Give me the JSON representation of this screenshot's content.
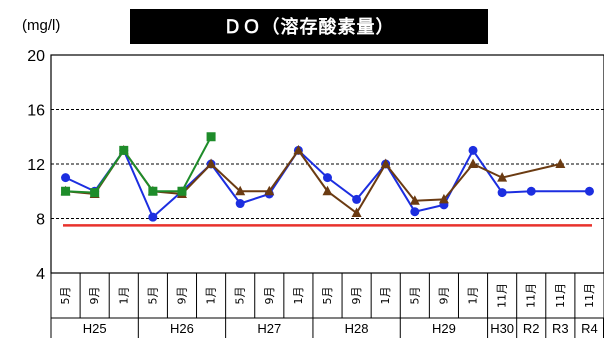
{
  "chart_data": {
    "type": "line",
    "title": "ＤＯ（溶存酸素量）",
    "ylabel": "(mg/l)",
    "xlabel": "",
    "ylim": [
      4,
      20
    ],
    "yticks": [
      4,
      8,
      12,
      16,
      20
    ],
    "grid": true,
    "categories": [
      "5月",
      "9月",
      "1月",
      "5月",
      "9月",
      "1月",
      "5月",
      "9月",
      "1月",
      "5月",
      "9月",
      "1月",
      "5月",
      "9月",
      "1月",
      "11月",
      "11月",
      "11月",
      "11月"
    ],
    "year_groups": [
      {
        "label": "H25",
        "span": 3
      },
      {
        "label": "H26",
        "span": 3
      },
      {
        "label": "H27",
        "span": 3
      },
      {
        "label": "H28",
        "span": 3
      },
      {
        "label": "H29",
        "span": 3
      },
      {
        "label": "H30",
        "span": 1
      },
      {
        "label": "R2",
        "span": 1
      },
      {
        "label": "R3",
        "span": 1
      },
      {
        "label": "R4",
        "span": 1
      }
    ],
    "reference_line": {
      "value": 7.5,
      "color": "#e8322c"
    },
    "series": [
      {
        "marker": "circle",
        "color": "#1c2ee0",
        "values": [
          11.0,
          10.0,
          13.0,
          8.1,
          10.0,
          12.0,
          9.1,
          9.8,
          13.0,
          11.0,
          9.4,
          12.0,
          8.5,
          9.0,
          13.0,
          9.9,
          10.0,
          null,
          10.0
        ]
      },
      {
        "marker": "triangle",
        "color": "#6b3b12",
        "values": [
          10.0,
          9.8,
          13.0,
          10.0,
          9.8,
          12.0,
          10.0,
          10.0,
          13.0,
          10.0,
          8.4,
          12.0,
          9.3,
          9.4,
          12.0,
          11.0,
          null,
          12.0,
          null
        ]
      },
      {
        "marker": "square",
        "color": "#1e8c2a",
        "values": [
          10.0,
          9.9,
          13.0,
          10.0,
          10.0,
          14.0,
          null,
          null,
          null,
          null,
          null,
          null,
          null,
          null,
          null,
          null,
          null,
          null,
          null
        ]
      }
    ]
  }
}
